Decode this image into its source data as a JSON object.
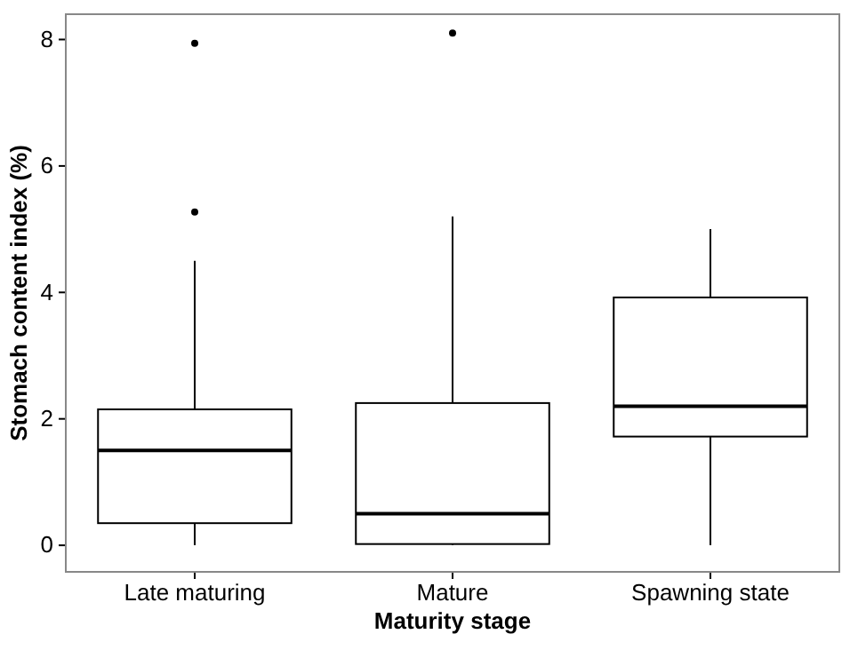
{
  "chart_data": {
    "type": "box",
    "xlabel": "Maturity stage",
    "ylabel": "Stomach content index (%)",
    "categories": [
      "Late maturing",
      "Mature",
      "Spawning state"
    ],
    "boxes": [
      {
        "low": 0,
        "q1": 0.35,
        "median": 1.5,
        "q3": 2.15,
        "high": 4.5,
        "outliers": [
          5.27,
          7.94
        ]
      },
      {
        "low": 0,
        "q1": 0.02,
        "median": 0.5,
        "q3": 2.25,
        "high": 5.2,
        "outliers": [
          8.1
        ]
      },
      {
        "low": 0,
        "q1": 1.72,
        "median": 2.2,
        "q3": 3.92,
        "high": 5.0
      }
    ],
    "ylim": [
      -0.42,
      8.4
    ],
    "yticks": [
      0,
      2,
      4,
      6,
      8
    ],
    "grid": false
  }
}
